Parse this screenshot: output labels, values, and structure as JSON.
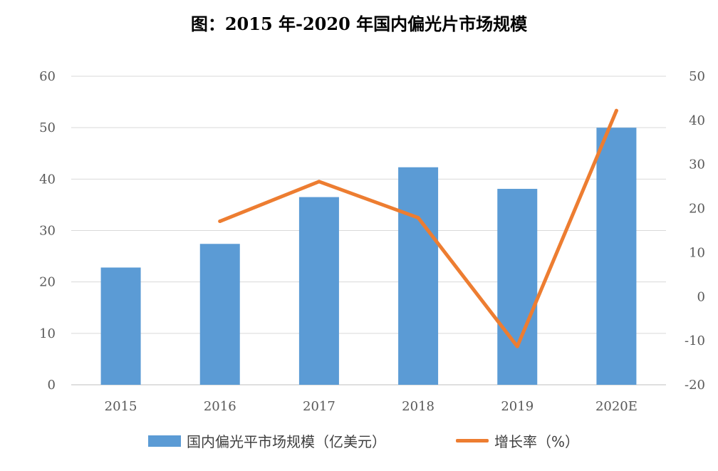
{
  "chart_data": {
    "type": "bar",
    "title": "图：2015 年-2020 年国内偏光片市场规模",
    "categories": [
      "2015",
      "2016",
      "2017",
      "2018",
      "2019",
      "2020E"
    ],
    "series": [
      {
        "name": "国内偏光平市场规模（亿美元）",
        "type": "bar",
        "axis": "left",
        "color": "#5b9bd5",
        "values": [
          22.8,
          27.4,
          36.5,
          42.3,
          38.1,
          50.0
        ]
      },
      {
        "name": "增长率（%）",
        "type": "line",
        "axis": "right",
        "color": "#ed7d31",
        "values": [
          null,
          17.1,
          26.1,
          17.9,
          -11.3,
          42.2
        ]
      }
    ],
    "y_left": {
      "range": [
        0,
        60
      ],
      "ticks": [
        "0",
        "10",
        "20",
        "30",
        "40",
        "50",
        "60"
      ]
    },
    "y_right": {
      "range": [
        -20,
        50
      ],
      "ticks": [
        "-20",
        "-10",
        "0",
        "10",
        "20",
        "30",
        "40",
        "50"
      ]
    },
    "grid": true,
    "legend_position": "bottom"
  }
}
